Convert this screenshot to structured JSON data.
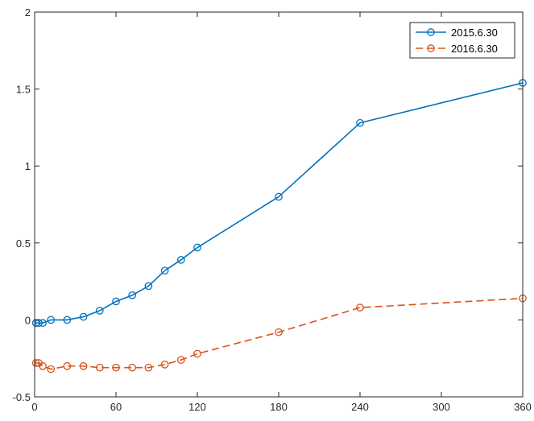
{
  "chart_data": {
    "type": "line",
    "title": "",
    "xlabel": "",
    "ylabel": "",
    "xlim": [
      0,
      360
    ],
    "ylim": [
      -0.5,
      2
    ],
    "xticks": [
      0,
      60,
      120,
      180,
      240,
      300,
      360
    ],
    "yticks": [
      -0.5,
      0,
      0.5,
      1,
      1.5,
      2
    ],
    "grid": false,
    "legend_position": "top-right",
    "series": [
      {
        "name": "2015.6.30",
        "color": "#0072BD",
        "line_style": "solid",
        "marker": "circle",
        "x": [
          1,
          3,
          6,
          12,
          24,
          36,
          48,
          60,
          72,
          84,
          96,
          108,
          120,
          180,
          240,
          360
        ],
        "y": [
          -0.02,
          -0.02,
          -0.02,
          0.0,
          0.0,
          0.02,
          0.06,
          0.12,
          0.16,
          0.22,
          0.32,
          0.39,
          0.47,
          0.8,
          1.28,
          1.54
        ]
      },
      {
        "name": "2016.6.30",
        "color": "#D95319",
        "line_style": "dashed",
        "marker": "circle",
        "x": [
          1,
          3,
          6,
          12,
          24,
          36,
          48,
          60,
          72,
          84,
          96,
          108,
          120,
          180,
          240,
          360
        ],
        "y": [
          -0.28,
          -0.28,
          -0.3,
          -0.32,
          -0.3,
          -0.3,
          -0.31,
          -0.31,
          -0.31,
          -0.31,
          -0.29,
          -0.26,
          -0.22,
          -0.08,
          0.08,
          0.14
        ]
      }
    ]
  }
}
